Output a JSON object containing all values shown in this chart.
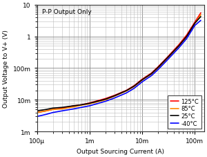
{
  "xlabel": "Output Sourcing Current (A)",
  "ylabel": "Output Voltage to V+ (V)",
  "xlim": [
    0.0001,
    0.15
  ],
  "ylim": [
    0.001,
    10
  ],
  "annotation": "P-P Output Only",
  "curves": [
    {
      "color": "#ff0000",
      "label": "125°C",
      "x": [
        0.0001,
        0.00015,
        0.0002,
        0.0003,
        0.0005,
        0.0007,
        0.001,
        0.002,
        0.003,
        0.005,
        0.007,
        0.01,
        0.015,
        0.02,
        0.03,
        0.05,
        0.07,
        0.1,
        0.13
      ],
      "y": [
        0.004,
        0.0045,
        0.005,
        0.0055,
        0.0065,
        0.007,
        0.008,
        0.011,
        0.014,
        0.02,
        0.028,
        0.045,
        0.07,
        0.11,
        0.22,
        0.55,
        1.1,
        2.8,
        5.5
      ]
    },
    {
      "color": "#ff8800",
      "label": "85°C",
      "x": [
        0.0001,
        0.00015,
        0.0002,
        0.0003,
        0.0005,
        0.0007,
        0.001,
        0.002,
        0.003,
        0.005,
        0.007,
        0.01,
        0.015,
        0.02,
        0.03,
        0.05,
        0.07,
        0.1,
        0.13
      ],
      "y": [
        0.004,
        0.0045,
        0.005,
        0.0052,
        0.006,
        0.0068,
        0.0075,
        0.01,
        0.013,
        0.019,
        0.026,
        0.042,
        0.065,
        0.1,
        0.2,
        0.5,
        0.95,
        2.5,
        4.8
      ]
    },
    {
      "color": "#000000",
      "label": "25°C",
      "x": [
        0.0001,
        0.00015,
        0.0002,
        0.0003,
        0.0005,
        0.0007,
        0.001,
        0.002,
        0.003,
        0.005,
        0.007,
        0.01,
        0.015,
        0.02,
        0.03,
        0.05,
        0.07,
        0.1,
        0.13
      ],
      "y": [
        0.0045,
        0.005,
        0.0055,
        0.0058,
        0.0065,
        0.007,
        0.0078,
        0.0105,
        0.0135,
        0.0195,
        0.027,
        0.043,
        0.067,
        0.105,
        0.21,
        0.51,
        1.0,
        2.6,
        4.2
      ]
    },
    {
      "color": "#0000ff",
      "label": "-40°C",
      "x": [
        0.0001,
        0.00015,
        0.0002,
        0.0003,
        0.0005,
        0.0007,
        0.001,
        0.002,
        0.003,
        0.005,
        0.007,
        0.01,
        0.015,
        0.02,
        0.03,
        0.05,
        0.07,
        0.1,
        0.13
      ],
      "y": [
        0.003,
        0.0035,
        0.004,
        0.0045,
        0.0052,
        0.0058,
        0.0065,
        0.009,
        0.0115,
        0.0165,
        0.023,
        0.037,
        0.058,
        0.09,
        0.18,
        0.44,
        0.85,
        2.2,
        3.2
      ]
    }
  ],
  "legend_loc": "lower right",
  "bg_color": "#ffffff",
  "grid_major_color": "#888888",
  "grid_minor_color": "#bbbbbb"
}
